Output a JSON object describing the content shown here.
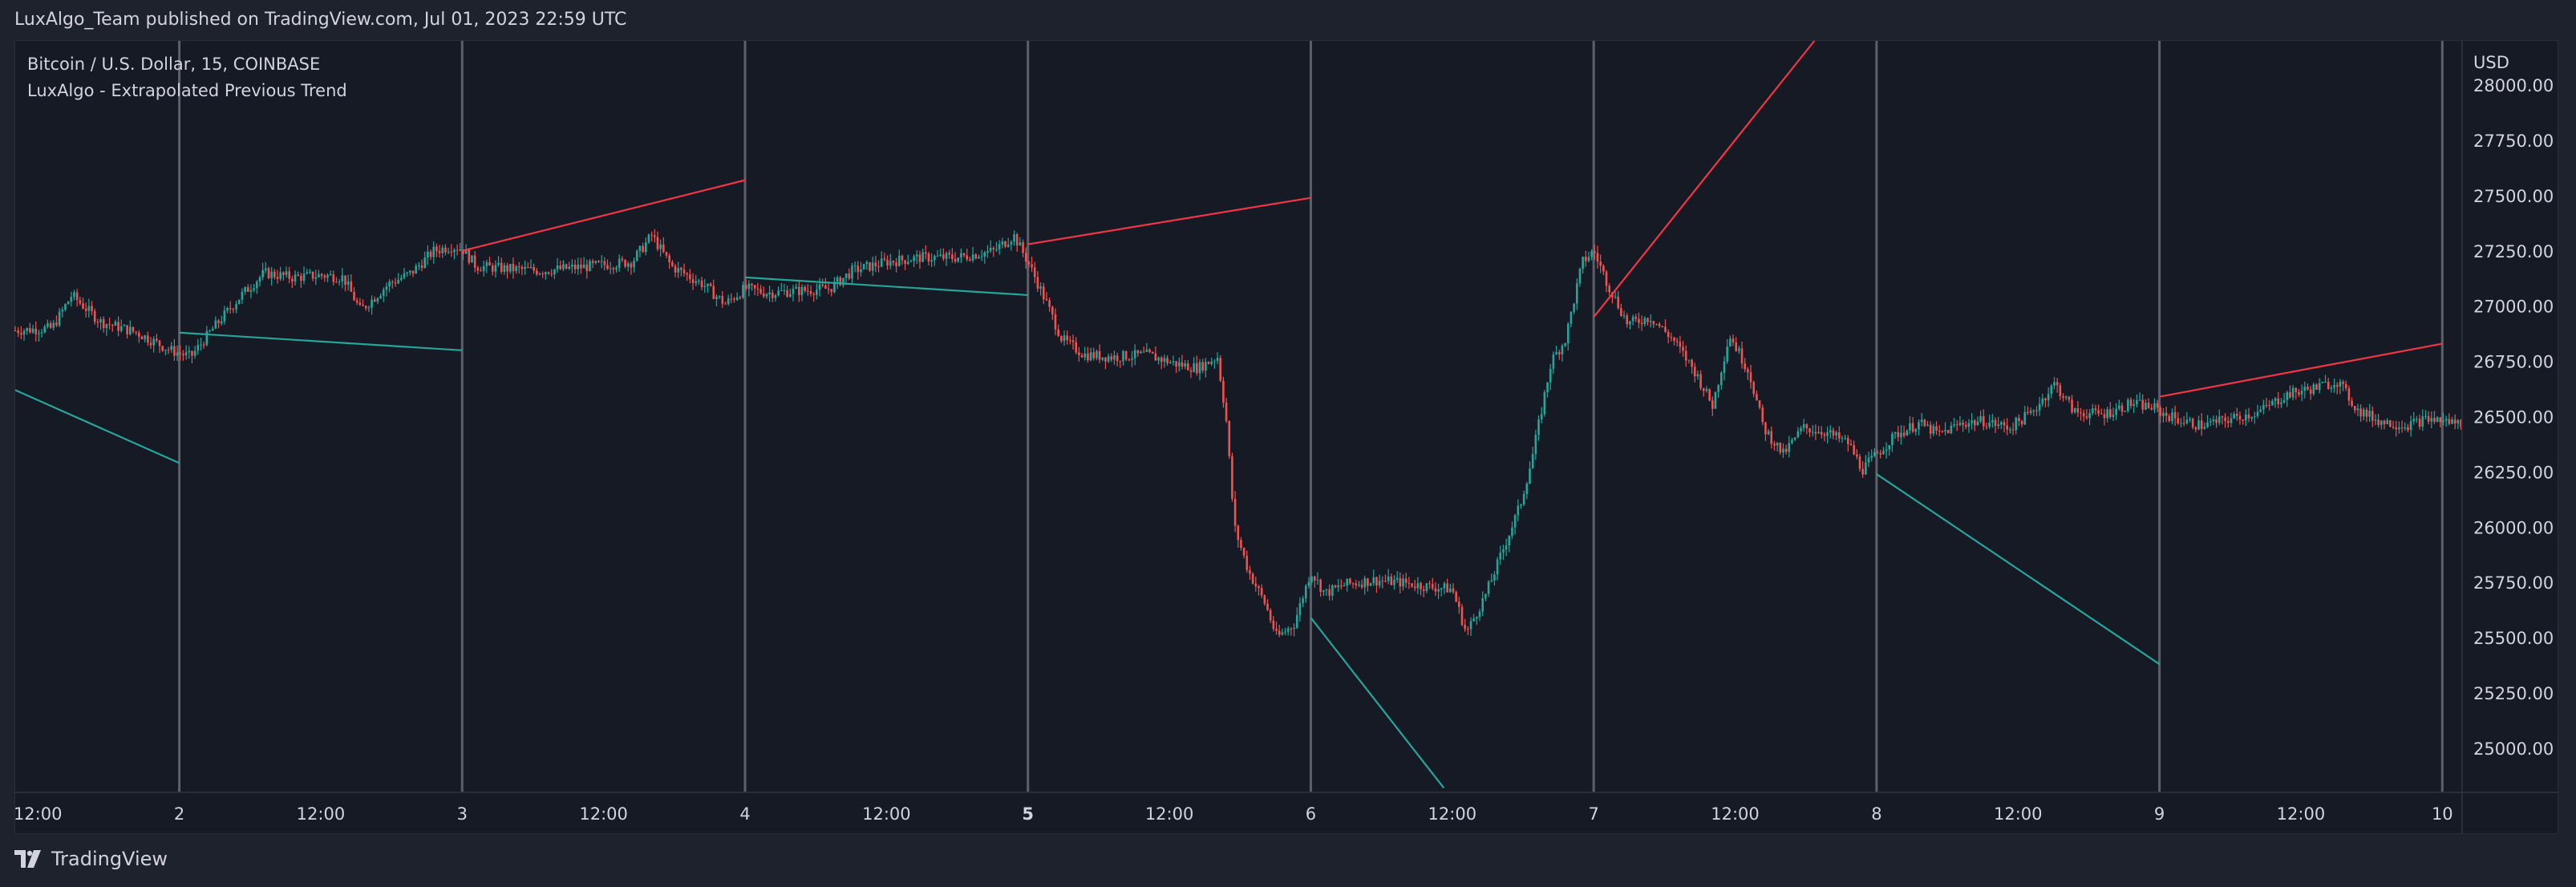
{
  "header": {
    "text": "LuxAlgo_Team published on TradingView.com, Jul 01, 2023 22:59 UTC"
  },
  "legend": {
    "symbol": "Bitcoin / U.S. Dollar, 15, COINBASE",
    "indicator": "LuxAlgo - Extrapolated Previous Trend"
  },
  "footer": {
    "brand": "TradingView"
  },
  "colors": {
    "background": "#161a25",
    "bull": "#26a69a",
    "bear": "#ef5350",
    "trend_up": "#f23645",
    "trend_down": "#26a69a",
    "separator": "#5d606b"
  },
  "chart_data": {
    "type": "candlestick",
    "currency_label": "USD",
    "y_range": [
      24800,
      28200
    ],
    "y_ticks": [
      25000,
      25250,
      25500,
      25750,
      26000,
      26250,
      26500,
      26750,
      27000,
      27250,
      27500,
      27750,
      28000
    ],
    "y_tick_labels": [
      "25000.00",
      "25250.00",
      "25500.00",
      "25750.00",
      "26000.00",
      "26250.00",
      "26500.00",
      "26750.00",
      "27000.00",
      "27250.00",
      "27500.00",
      "27750.00",
      "28000.00"
    ],
    "x_range": [
      1.42,
      10.07
    ],
    "x_ticks": [
      {
        "x": 1.5,
        "label": "12:00",
        "bold": false
      },
      {
        "x": 2,
        "label": "2",
        "bold": false
      },
      {
        "x": 2.5,
        "label": "12:00",
        "bold": false
      },
      {
        "x": 3,
        "label": "3",
        "bold": false
      },
      {
        "x": 3.5,
        "label": "12:00",
        "bold": false
      },
      {
        "x": 4,
        "label": "4",
        "bold": false
      },
      {
        "x": 4.5,
        "label": "12:00",
        "bold": false
      },
      {
        "x": 5,
        "label": "5",
        "bold": true
      },
      {
        "x": 5.5,
        "label": "12:00",
        "bold": false
      },
      {
        "x": 6,
        "label": "6",
        "bold": false
      },
      {
        "x": 6.5,
        "label": "12:00",
        "bold": false
      },
      {
        "x": 7,
        "label": "7",
        "bold": false
      },
      {
        "x": 7.5,
        "label": "12:00",
        "bold": false
      },
      {
        "x": 8,
        "label": "8",
        "bold": false
      },
      {
        "x": 8.5,
        "label": "12:00",
        "bold": false
      },
      {
        "x": 9,
        "label": "9",
        "bold": false
      },
      {
        "x": 9.5,
        "label": "12:00",
        "bold": false
      },
      {
        "x": 10,
        "label": "10",
        "bold": false
      }
    ],
    "session_separators": [
      2,
      3,
      4,
      5,
      6,
      7,
      8,
      9,
      10
    ],
    "price_path": [
      [
        1.42,
        26890
      ],
      [
        1.55,
        26900
      ],
      [
        1.62,
        27050
      ],
      [
        1.72,
        26930
      ],
      [
        1.85,
        26880
      ],
      [
        1.97,
        26800
      ],
      [
        2.04,
        26770
      ],
      [
        2.12,
        26900
      ],
      [
        2.22,
        27050
      ],
      [
        2.3,
        27150
      ],
      [
        2.4,
        27130
      ],
      [
        2.5,
        27140
      ],
      [
        2.58,
        27130
      ],
      [
        2.64,
        26980
      ],
      [
        2.74,
        27100
      ],
      [
        2.82,
        27150
      ],
      [
        2.9,
        27250
      ],
      [
        2.96,
        27270
      ],
      [
        3.0,
        27260
      ],
      [
        3.05,
        27180
      ],
      [
        3.15,
        27170
      ],
      [
        3.28,
        27160
      ],
      [
        3.45,
        27180
      ],
      [
        3.6,
        27200
      ],
      [
        3.67,
        27320
      ],
      [
        3.74,
        27180
      ],
      [
        3.85,
        27100
      ],
      [
        3.93,
        27010
      ],
      [
        4.0,
        27080
      ],
      [
        4.08,
        27060
      ],
      [
        4.2,
        27070
      ],
      [
        4.3,
        27080
      ],
      [
        4.38,
        27160
      ],
      [
        4.5,
        27200
      ],
      [
        4.62,
        27220
      ],
      [
        4.75,
        27220
      ],
      [
        4.88,
        27250
      ],
      [
        4.95,
        27320
      ],
      [
        5.0,
        27200
      ],
      [
        5.05,
        27060
      ],
      [
        5.12,
        26850
      ],
      [
        5.2,
        26780
      ],
      [
        5.3,
        26770
      ],
      [
        5.42,
        26780
      ],
      [
        5.52,
        26740
      ],
      [
        5.6,
        26720
      ],
      [
        5.67,
        26770
      ],
      [
        5.7,
        26500
      ],
      [
        5.73,
        26000
      ],
      [
        5.78,
        25800
      ],
      [
        5.84,
        25650
      ],
      [
        5.88,
        25500
      ],
      [
        5.94,
        25560
      ],
      [
        6.0,
        25800
      ],
      [
        6.05,
        25700
      ],
      [
        6.12,
        25740
      ],
      [
        6.22,
        25760
      ],
      [
        6.32,
        25750
      ],
      [
        6.42,
        25730
      ],
      [
        6.5,
        25720
      ],
      [
        6.55,
        25520
      ],
      [
        6.62,
        25700
      ],
      [
        6.68,
        25900
      ],
      [
        6.74,
        26100
      ],
      [
        6.78,
        26300
      ],
      [
        6.85,
        26750
      ],
      [
        6.9,
        26850
      ],
      [
        6.96,
        27200
      ],
      [
        7.0,
        27250
      ],
      [
        7.05,
        27100
      ],
      [
        7.12,
        26920
      ],
      [
        7.2,
        26950
      ],
      [
        7.28,
        26850
      ],
      [
        7.36,
        26700
      ],
      [
        7.42,
        26550
      ],
      [
        7.48,
        26870
      ],
      [
        7.55,
        26700
      ],
      [
        7.6,
        26450
      ],
      [
        7.67,
        26330
      ],
      [
        7.74,
        26450
      ],
      [
        7.82,
        26430
      ],
      [
        7.9,
        26380
      ],
      [
        7.95,
        26260
      ],
      [
        8.0,
        26330
      ],
      [
        8.07,
        26420
      ],
      [
        8.15,
        26470
      ],
      [
        8.22,
        26420
      ],
      [
        8.3,
        26470
      ],
      [
        8.38,
        26480
      ],
      [
        8.47,
        26450
      ],
      [
        8.55,
        26520
      ],
      [
        8.63,
        26650
      ],
      [
        8.7,
        26520
      ],
      [
        8.8,
        26510
      ],
      [
        8.9,
        26560
      ],
      [
        8.98,
        26540
      ],
      [
        9.0,
        26520
      ],
      [
        9.08,
        26480
      ],
      [
        9.15,
        26460
      ],
      [
        9.25,
        26490
      ],
      [
        9.35,
        26520
      ],
      [
        9.45,
        26600
      ],
      [
        9.55,
        26630
      ],
      [
        9.63,
        26660
      ],
      [
        9.7,
        26530
      ],
      [
        9.78,
        26480
      ],
      [
        9.87,
        26460
      ],
      [
        9.95,
        26490
      ],
      [
        10.07,
        26470
      ]
    ],
    "trend_lines": [
      {
        "x1": 1.42,
        "y1": 26620,
        "x2": 2.0,
        "y2": 26290,
        "color": "trend_down"
      },
      {
        "x1": 2.0,
        "y1": 26880,
        "x2": 3.0,
        "y2": 26800,
        "color": "trend_down"
      },
      {
        "x1": 3.0,
        "y1": 27250,
        "x2": 4.0,
        "y2": 27570,
        "color": "trend_up"
      },
      {
        "x1": 4.0,
        "y1": 27130,
        "x2": 5.0,
        "y2": 27050,
        "color": "trend_down"
      },
      {
        "x1": 5.0,
        "y1": 27280,
        "x2": 6.0,
        "y2": 27490,
        "color": "trend_up"
      },
      {
        "x1": 6.0,
        "y1": 25590,
        "x2": 6.47,
        "y2": 24820,
        "color": "trend_down"
      },
      {
        "x1": 7.0,
        "y1": 26950,
        "x2": 7.78,
        "y2": 28200,
        "color": "trend_up"
      },
      {
        "x1": 8.0,
        "y1": 26240,
        "x2": 9.0,
        "y2": 25380,
        "color": "trend_down"
      },
      {
        "x1": 9.0,
        "y1": 26590,
        "x2": 10.0,
        "y2": 26830,
        "color": "trend_up"
      }
    ]
  }
}
